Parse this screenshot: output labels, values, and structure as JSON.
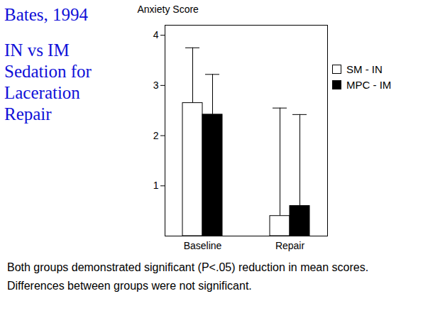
{
  "chart_data": {
    "type": "bar",
    "title": "Bates, 1994",
    "subtitle": "IN vs IM Sedation for Laceration Repair",
    "y_label": "Anxiety Score",
    "categories": [
      "Baseline",
      "Repair"
    ],
    "series": [
      {
        "name": "SM - IN",
        "color": "#ffffff",
        "values": [
          2.65,
          0.4
        ],
        "error_upper": [
          1.1,
          2.15
        ]
      },
      {
        "name": "MPC - IM",
        "color": "#000000",
        "values": [
          2.42,
          0.6
        ],
        "error_upper": [
          0.8,
          1.82
        ]
      }
    ],
    "ylim": [
      0,
      4.2
    ],
    "yticks": [
      1,
      2,
      3,
      4
    ],
    "legend": "top-right",
    "caption": "Both groups demonstrated significant (P<.05) reduction in mean scores. Differences between groups were not significant."
  }
}
